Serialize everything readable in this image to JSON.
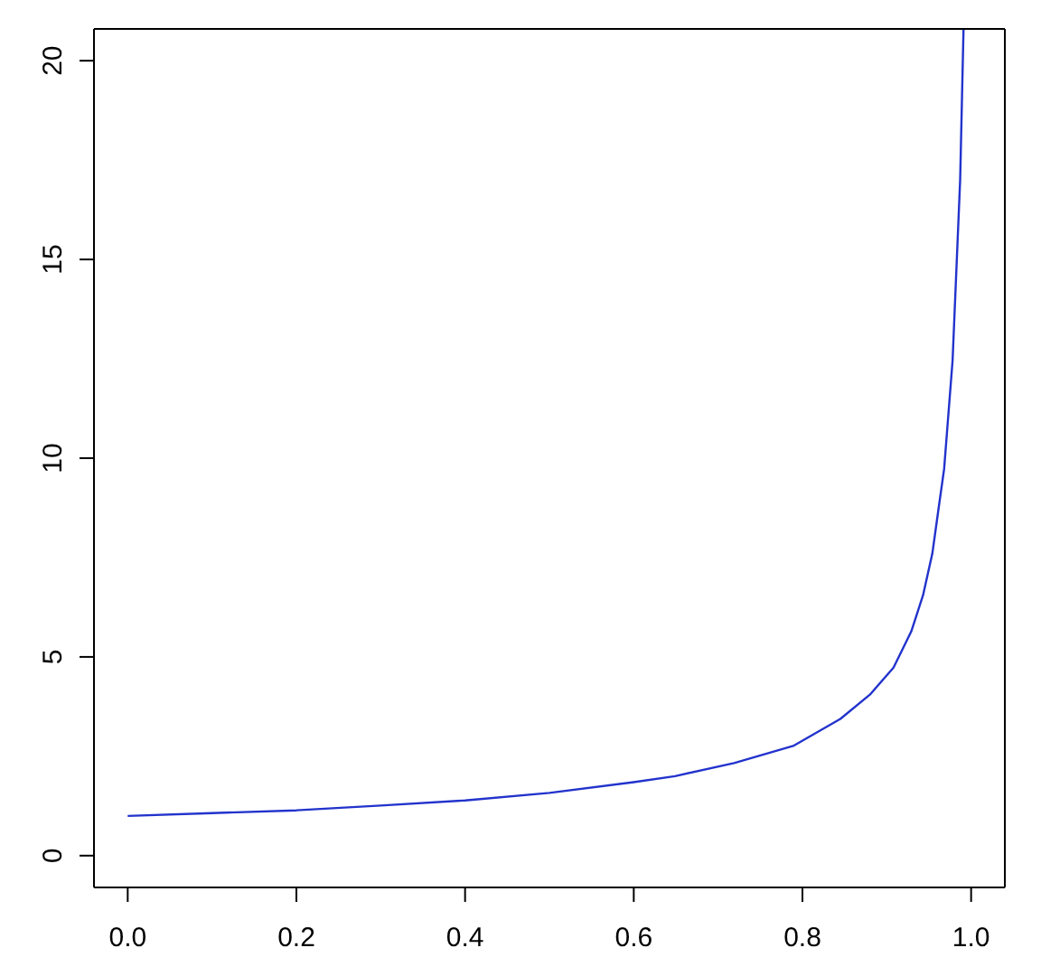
{
  "chart_data": {
    "type": "line",
    "x": [
      0,
      0.1,
      0.2,
      0.3,
      0.4,
      0.5,
      0.6,
      0.649,
      0.719,
      0.789,
      0.845,
      0.88,
      0.908,
      0.929,
      0.943,
      0.954,
      0.961,
      0.968,
      0.978,
      0.987,
      0.991
    ],
    "series": [
      {
        "color": "#2233cc",
        "values": [
          1.0,
          1.07,
          1.14,
          1.26,
          1.39,
          1.58,
          1.85,
          2.0,
          2.33,
          2.76,
          3.44,
          4.05,
          4.73,
          5.64,
          6.55,
          7.6,
          8.67,
          9.73,
          12.45,
          17.0,
          20.8
        ]
      }
    ],
    "xlim": [
      -0.04,
      1.04
    ],
    "xticks": [
      {
        "value": 0,
        "label": "0.0"
      },
      0.2,
      0.4,
      0.6,
      0.8,
      {
        "value": 1,
        "label": "1.0"
      }
    ],
    "ylim": [
      -0.8,
      20.8
    ],
    "yticks": [
      0,
      5,
      10,
      15,
      20
    ],
    "grid": false,
    "legend": false,
    "marker": "none",
    "line_style": "solid"
  }
}
